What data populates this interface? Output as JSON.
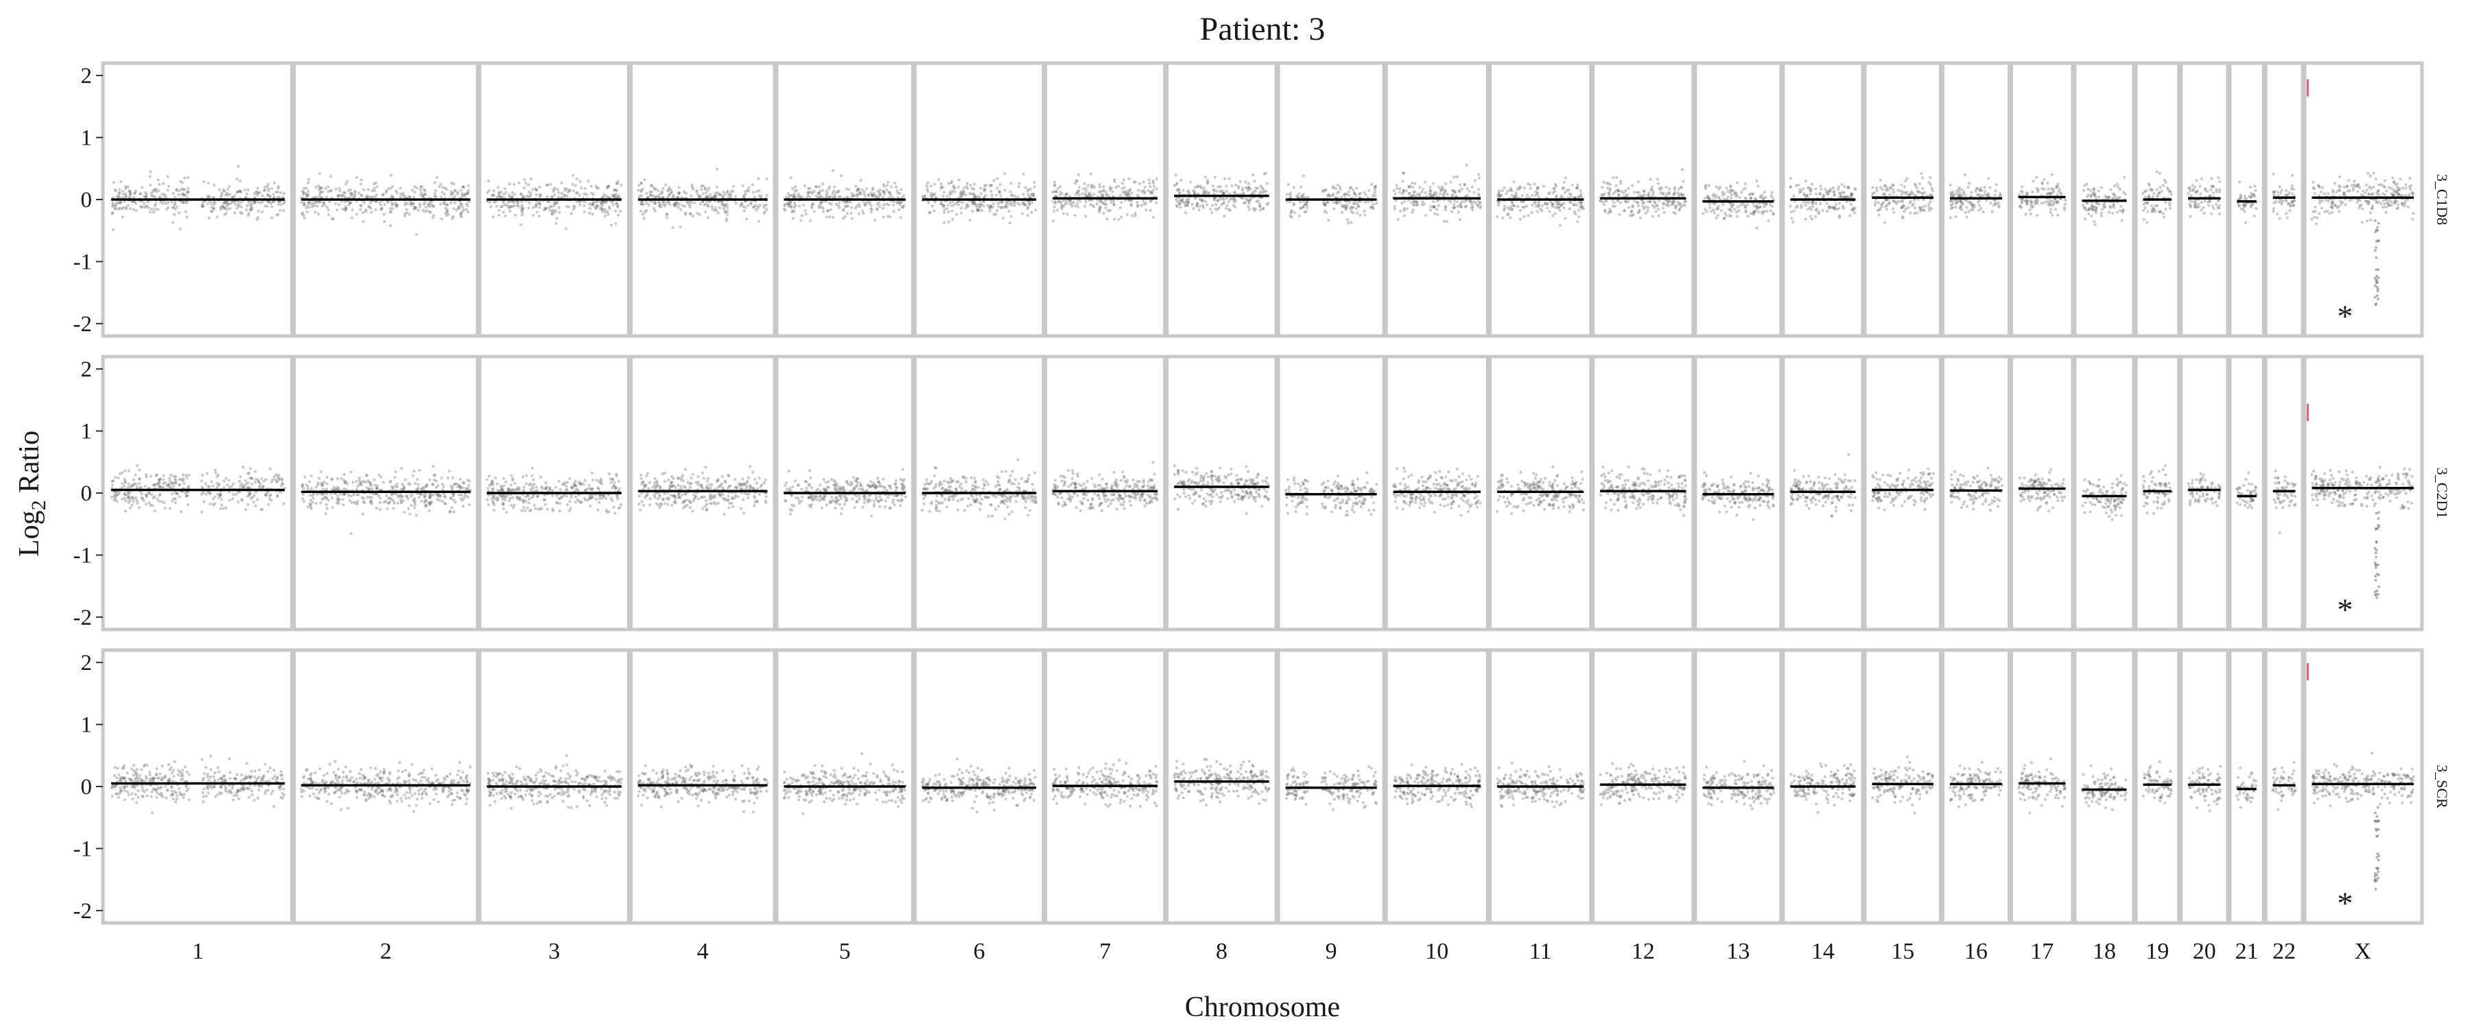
{
  "chart_data": {
    "type": "scatter",
    "title": "Patient: 3",
    "xlabel": "Chromosome",
    "ylabel_main": "Log",
    "ylabel_sub": "2",
    "ylabel_tail": " Ratio",
    "ylim": [
      -2.2,
      2.2
    ],
    "yticks": [
      "2",
      "1",
      "0",
      "-1",
      "-2"
    ],
    "ytick_values": [
      2,
      1,
      0,
      -1,
      -2
    ],
    "chromosomes": [
      "1",
      "2",
      "3",
      "4",
      "5",
      "6",
      "7",
      "8",
      "9",
      "10",
      "11",
      "12",
      "13",
      "14",
      "15",
      "16",
      "17",
      "18",
      "19",
      "20",
      "21",
      "22",
      "X"
    ],
    "chromosome_widths": [
      249,
      243,
      198,
      191,
      181,
      171,
      159,
      146,
      141,
      136,
      135,
      134,
      115,
      107,
      102,
      90,
      83,
      80,
      59,
      64,
      47,
      51,
      155
    ],
    "panels": [
      {
        "label": "3_C1D8",
        "segments": [
          0.0,
          0.0,
          0.0,
          0.0,
          0.0,
          0.0,
          0.02,
          0.06,
          0.0,
          0.02,
          0.0,
          0.02,
          -0.03,
          0.0,
          0.03,
          0.02,
          0.04,
          -0.02,
          0.0,
          0.02,
          -0.03,
          0.03,
          0.03
        ],
        "x_outlier_star": -1.85,
        "high_marks": [
          1.75,
          1.85
        ]
      },
      {
        "label": "3_C2D1",
        "segments": [
          0.05,
          0.02,
          0.0,
          0.03,
          0.0,
          0.0,
          0.03,
          0.1,
          -0.02,
          0.02,
          0.02,
          0.03,
          -0.02,
          0.02,
          0.05,
          0.04,
          0.07,
          -0.05,
          0.03,
          0.05,
          -0.05,
          0.03,
          0.08
        ],
        "x_outlier_star": -1.85,
        "high_marks": [
          1.35,
          1.25
        ]
      },
      {
        "label": "3_SCR",
        "segments": [
          0.05,
          0.02,
          0.0,
          0.02,
          0.0,
          -0.02,
          0.01,
          0.08,
          -0.02,
          0.01,
          0.0,
          0.03,
          -0.02,
          0.0,
          0.04,
          0.04,
          0.05,
          -0.05,
          0.03,
          0.03,
          -0.04,
          0.02,
          0.04
        ],
        "x_outlier_star": -1.85,
        "high_marks": [
          1.9,
          1.8
        ]
      }
    ],
    "colors": {
      "points": "#6b6b6b",
      "segment": "#000000",
      "panel_border": "#c8c8c8",
      "separator": "#c8c8c8",
      "star": "#29a3dc",
      "highlight": "#e0607e"
    },
    "star_symbol": "*",
    "grid": false,
    "legend": "none"
  }
}
